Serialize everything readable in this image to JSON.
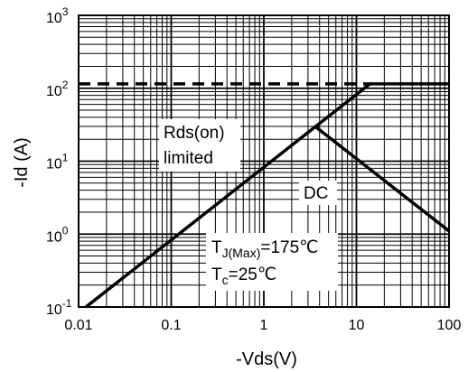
{
  "chart_data": {
    "type": "line",
    "xlabel": "-Vds(V)",
    "ylabel": "-Id (A)",
    "x_scale": "log",
    "y_scale": "log",
    "xlim": [
      0.01,
      100
    ],
    "ylim": [
      0.1,
      1000
    ],
    "grid": true,
    "x_ticks": [
      {
        "value": 0.01,
        "label": "0.01"
      },
      {
        "value": 0.1,
        "label": "0.1"
      },
      {
        "value": 1,
        "label": "1"
      },
      {
        "value": 10,
        "label": "10"
      },
      {
        "value": 100,
        "label": "100"
      }
    ],
    "y_ticks": [
      {
        "value": 0.1,
        "base": "10",
        "exp": "-1"
      },
      {
        "value": 1,
        "base": "10",
        "exp": "0"
      },
      {
        "value": 10,
        "base": "10",
        "exp": "1"
      },
      {
        "value": 100,
        "base": "10",
        "exp": "2"
      },
      {
        "value": 1000,
        "base": "10",
        "exp": "3"
      }
    ],
    "series": [
      {
        "style": "dashed",
        "points": [
          [
            0.01,
            115
          ],
          [
            14,
            115
          ]
        ]
      },
      {
        "style": "solid",
        "points": [
          [
            0.012,
            0.1
          ],
          [
            14,
            115
          ],
          [
            100,
            115
          ]
        ]
      },
      {
        "style": "solid",
        "points": [
          [
            3.7,
            29
          ],
          [
            100,
            1.1
          ]
        ]
      }
    ],
    "annotations": {
      "rds_line1": "Rds(on)",
      "rds_line2": "limited",
      "dc": "DC",
      "tj_T": "T",
      "tj_sub": "J(Max)",
      "tj_value": "=175℃",
      "tc_T": "T",
      "tc_sub": "c",
      "tc_value": "=25℃"
    }
  }
}
